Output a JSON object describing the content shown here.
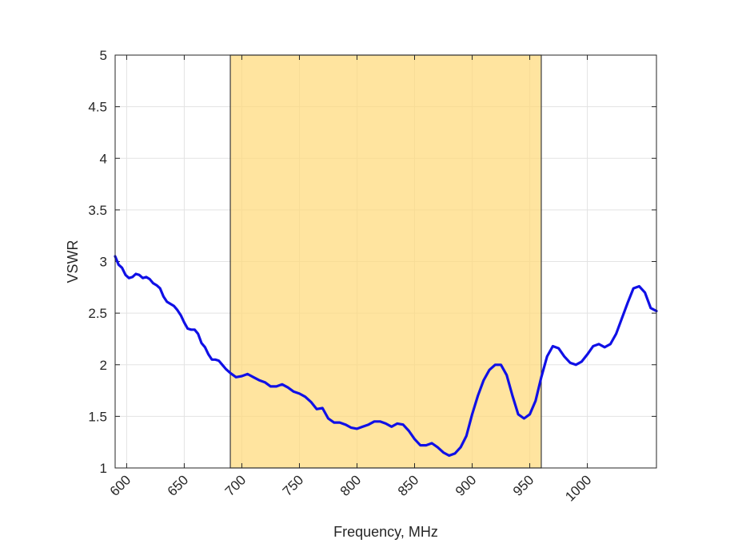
{
  "chart_data": {
    "type": "line",
    "title": "",
    "xlabel": "Frequency, MHz",
    "ylabel": "VSWR",
    "xlim": [
      590,
      1060
    ],
    "ylim": [
      1,
      5
    ],
    "xticks": [
      600,
      650,
      700,
      750,
      800,
      850,
      900,
      950,
      1000
    ],
    "xtick_labels": [
      "600",
      "650",
      "700",
      "750",
      "800",
      "850",
      "900",
      "950",
      "1000"
    ],
    "yticks": [
      1,
      1.5,
      2,
      2.5,
      3,
      3.5,
      4,
      4.5,
      5
    ],
    "ytick_labels": [
      "1",
      "1.5",
      "2",
      "2.5",
      "3",
      "3.5",
      "4",
      "4.5",
      "5"
    ],
    "grid": true,
    "highlight_band": {
      "x_start": 690,
      "x_end": 960,
      "color": "#FFDA7A"
    },
    "line_color": "#1010E6",
    "series": [
      {
        "x": [
          590,
          593,
          596,
          599,
          602,
          605,
          608,
          611,
          614,
          617,
          620,
          623,
          626,
          629,
          632,
          635,
          638,
          641,
          644,
          647,
          650,
          653,
          656,
          659,
          662,
          665,
          668,
          671,
          674,
          677,
          680,
          683,
          686,
          690,
          695,
          700,
          705,
          710,
          715,
          720,
          725,
          730,
          735,
          740,
          745,
          750,
          755,
          760,
          765,
          770,
          775,
          780,
          785,
          790,
          795,
          800,
          805,
          810,
          815,
          820,
          825,
          830,
          835,
          840,
          845,
          850,
          855,
          860,
          865,
          870,
          875,
          880,
          885,
          890,
          895,
          900,
          905,
          910,
          915,
          920,
          925,
          930,
          935,
          940,
          945,
          950,
          955,
          960,
          965,
          970,
          975,
          980,
          985,
          990,
          995,
          1000,
          1005,
          1010,
          1015,
          1020,
          1025,
          1030,
          1035,
          1040,
          1045,
          1050,
          1055,
          1060
        ],
        "y": [
          3.05,
          2.97,
          2.94,
          2.87,
          2.84,
          2.85,
          2.88,
          2.87,
          2.84,
          2.85,
          2.83,
          2.79,
          2.77,
          2.74,
          2.66,
          2.61,
          2.59,
          2.57,
          2.53,
          2.48,
          2.41,
          2.35,
          2.34,
          2.34,
          2.3,
          2.21,
          2.17,
          2.1,
          2.05,
          2.05,
          2.04,
          2.0,
          1.96,
          1.92,
          1.88,
          1.89,
          1.91,
          1.88,
          1.85,
          1.83,
          1.79,
          1.79,
          1.81,
          1.78,
          1.74,
          1.72,
          1.69,
          1.64,
          1.57,
          1.58,
          1.48,
          1.44,
          1.44,
          1.42,
          1.39,
          1.38,
          1.4,
          1.42,
          1.45,
          1.45,
          1.43,
          1.4,
          1.43,
          1.42,
          1.36,
          1.28,
          1.22,
          1.22,
          1.24,
          1.2,
          1.15,
          1.12,
          1.14,
          1.2,
          1.31,
          1.52,
          1.7,
          1.85,
          1.95,
          2.0,
          2.0,
          1.9,
          1.7,
          1.52,
          1.48,
          1.52,
          1.65,
          1.88,
          2.08,
          2.18,
          2.16,
          2.08,
          2.02,
          2.0,
          2.03,
          2.1,
          2.18,
          2.2,
          2.17,
          2.2,
          2.3,
          2.45,
          2.6,
          2.74,
          2.76,
          2.7,
          2.55,
          2.52
        ]
      }
    ]
  }
}
